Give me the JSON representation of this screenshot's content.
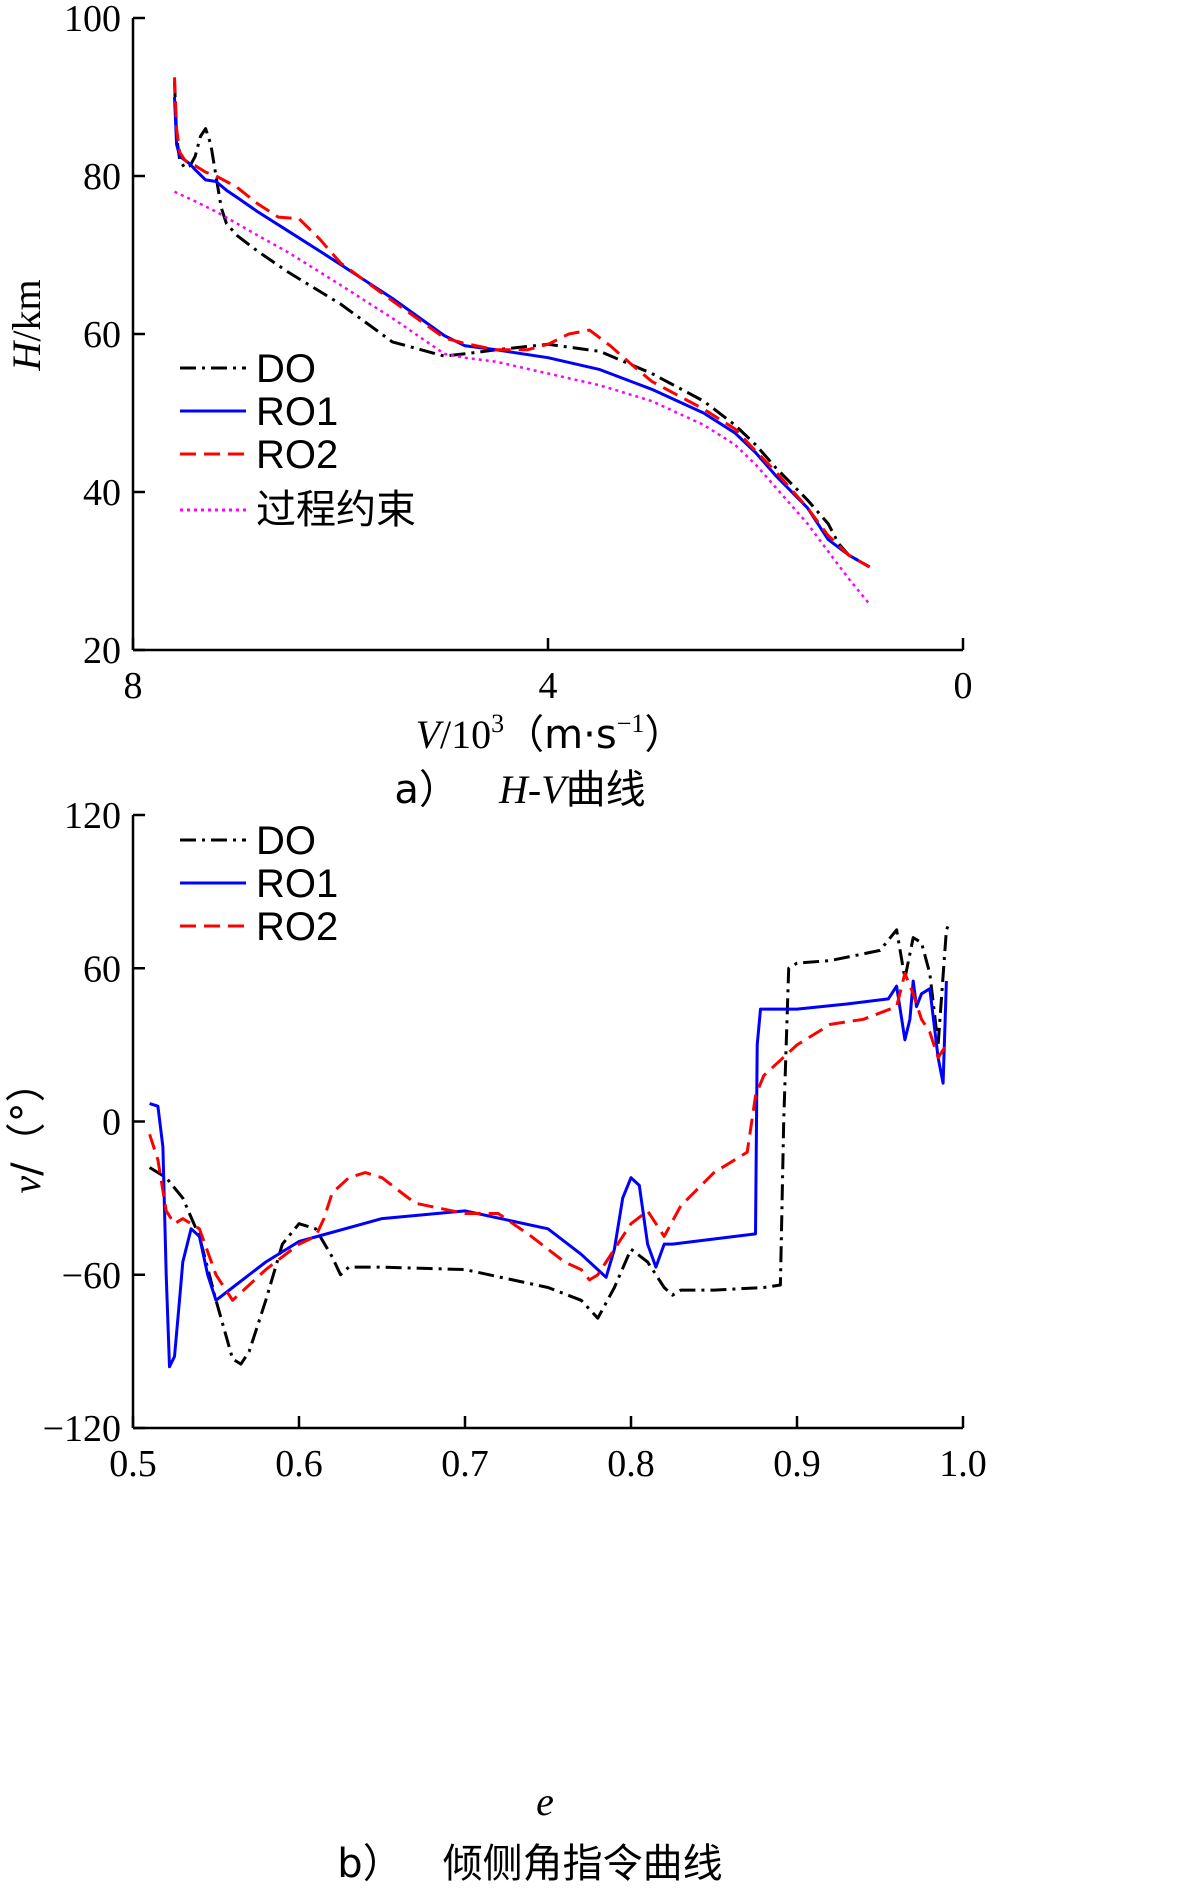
{
  "figure": {
    "caption_a_prefix": "a）",
    "caption_a_title_italic": "H-V",
    "caption_a_title_suffix": "曲线",
    "caption_b_prefix": "b）",
    "caption_b_title": "倾侧角指令曲线"
  },
  "colors": {
    "DO": "#000000",
    "RO1": "#0000ff",
    "RO2": "#ff0000",
    "constraint": "#ff00ff"
  },
  "chart_data": [
    {
      "type": "line",
      "ylabel_italic": "H",
      "ylabel_unit": "/km",
      "xlabel_italic": "V",
      "xlabel_unit": "/10",
      "xlabel_exp": "3",
      "xlabel_units": "（m·s",
      "xlabel_units_exp": "−1",
      "xlabel_units_close": "）",
      "xlim": [
        8,
        0
      ],
      "ylim": [
        20,
        100
      ],
      "xticks": [
        "8",
        "4",
        "0"
      ],
      "xtick_values": [
        8,
        4,
        0
      ],
      "yticks": [
        "20",
        "40",
        "60",
        "80",
        "100"
      ],
      "ytick_values": [
        20,
        40,
        60,
        80,
        100
      ],
      "legend": [
        "DO",
        "RO1",
        "RO2",
        "过程约束"
      ],
      "legend_position": "middle-left",
      "series": [
        {
          "name": "DO",
          "style": "dashdot",
          "color": "#000000",
          "x": [
            7.6,
            7.58,
            7.55,
            7.5,
            7.45,
            7.4,
            7.35,
            7.3,
            7.25,
            7.2,
            7.15,
            7.1,
            7.0,
            6.8,
            6.5,
            6.0,
            5.5,
            5.0,
            4.8,
            4.5,
            4.0,
            3.5,
            3.0,
            2.5,
            2.2,
            2.0,
            1.8,
            1.5,
            1.3,
            1.2,
            1.1,
            0.9
          ],
          "y": [
            92,
            85,
            82,
            81,
            81.3,
            82.5,
            85,
            86,
            84,
            80,
            76,
            74,
            72.5,
            70.5,
            67.8,
            63.8,
            59,
            57.2,
            57.5,
            58,
            58.7,
            57.8,
            55,
            51.5,
            48.5,
            46,
            43,
            39,
            36,
            33.5,
            32,
            30.5
          ]
        },
        {
          "name": "RO1",
          "style": "solid",
          "color": "#0000ff",
          "x": [
            7.6,
            7.58,
            7.55,
            7.5,
            7.45,
            7.4,
            7.3,
            7.2,
            7.1,
            7.0,
            6.8,
            6.5,
            6.2,
            6.0,
            5.5,
            5.0,
            4.8,
            4.5,
            4.0,
            3.5,
            3.0,
            2.5,
            2.2,
            2.0,
            1.8,
            1.5,
            1.3,
            1.1,
            0.9
          ],
          "y": [
            90,
            84,
            82.5,
            82,
            81.5,
            80.8,
            79.5,
            79.3,
            78.2,
            77.3,
            75.5,
            73,
            70.5,
            68.8,
            64.5,
            59.8,
            58.5,
            58,
            57,
            55.5,
            53,
            50,
            47.5,
            45,
            42,
            38,
            34,
            32,
            30.5
          ]
        },
        {
          "name": "RO2",
          "style": "dashed",
          "color": "#ff0000",
          "x": [
            7.6,
            7.58,
            7.55,
            7.5,
            7.45,
            7.4,
            7.3,
            7.2,
            7.0,
            6.8,
            6.6,
            6.4,
            6.2,
            6.0,
            5.5,
            5.0,
            4.8,
            4.5,
            4.2,
            4.0,
            3.8,
            3.6,
            3.4,
            3.2,
            3.0,
            2.5,
            2.2,
            2.0,
            1.8,
            1.5,
            1.3,
            1.1,
            0.9
          ],
          "y": [
            92.5,
            86,
            83,
            82,
            81.5,
            81.3,
            80.5,
            80,
            78.6,
            76.5,
            74.8,
            74.6,
            72,
            69,
            64.2,
            59.5,
            58.8,
            58,
            58,
            58.7,
            60,
            60.5,
            58.5,
            56.2,
            54,
            50.5,
            48,
            45.2,
            42.5,
            38,
            34.5,
            32,
            30.5
          ]
        },
        {
          "name": "过程约束",
          "style": "dotted",
          "color": "#ff00ff",
          "x": [
            7.6,
            7.4,
            7.2,
            7.0,
            6.8,
            6.5,
            6.0,
            5.5,
            5.0,
            4.8,
            4.5,
            4.0,
            3.5,
            3.0,
            2.5,
            2.2,
            2.0,
            1.8,
            1.5,
            1.3,
            1.1,
            0.9
          ],
          "y": [
            78,
            76.8,
            75.5,
            74,
            72.5,
            70.3,
            66.2,
            62,
            57.5,
            57,
            56.5,
            55,
            53.5,
            51.5,
            48.5,
            46,
            43.5,
            40.5,
            36,
            32.5,
            29,
            25.8
          ]
        }
      ]
    },
    {
      "type": "line",
      "ylabel_italic": "ν",
      "ylabel_unit": "/（°）",
      "xlabel_italic": "e",
      "xlim": [
        0.5,
        1.0
      ],
      "ylim": [
        -120,
        120
      ],
      "xticks": [
        "0.5",
        "0.6",
        "0.7",
        "0.8",
        "0.9",
        "1.0"
      ],
      "xtick_values": [
        0.5,
        0.6,
        0.7,
        0.8,
        0.9,
        1.0
      ],
      "yticks": [
        "−120",
        "−60",
        "0",
        "60",
        "120"
      ],
      "ytick_values": [
        -120,
        -60,
        0,
        60,
        120
      ],
      "legend": [
        "DO",
        "RO1",
        "RO2"
      ],
      "legend_position": "top-left",
      "series": [
        {
          "name": "DO",
          "style": "dashdot",
          "color": "#000000",
          "x": [
            0.51,
            0.52,
            0.53,
            0.54,
            0.55,
            0.56,
            0.565,
            0.57,
            0.58,
            0.59,
            0.6,
            0.61,
            0.62,
            0.625,
            0.63,
            0.65,
            0.7,
            0.75,
            0.77,
            0.78,
            0.79,
            0.8,
            0.81,
            0.82,
            0.825,
            0.83,
            0.85,
            0.88,
            0.89,
            0.892,
            0.895,
            0.9,
            0.92,
            0.95,
            0.96,
            0.965,
            0.97,
            0.975,
            0.98,
            0.985,
            0.99,
            0.992
          ],
          "y": [
            -18,
            -22,
            -30,
            -45,
            -70,
            -93,
            -95,
            -90,
            -70,
            -48,
            -40,
            -42,
            -53,
            -60,
            -57,
            -57,
            -58,
            -65,
            -70,
            -77,
            -65,
            -50,
            -55,
            -65,
            -68,
            -66,
            -66,
            -65,
            -64,
            0,
            60,
            62,
            63,
            67,
            75,
            56,
            72,
            70,
            58,
            30,
            75,
            78
          ]
        },
        {
          "name": "RO1",
          "style": "solid",
          "color": "#0000ff",
          "x": [
            0.51,
            0.515,
            0.518,
            0.52,
            0.522,
            0.525,
            0.528,
            0.53,
            0.535,
            0.54,
            0.545,
            0.55,
            0.56,
            0.58,
            0.6,
            0.65,
            0.7,
            0.75,
            0.77,
            0.78,
            0.785,
            0.79,
            0.795,
            0.8,
            0.805,
            0.81,
            0.815,
            0.82,
            0.825,
            0.85,
            0.875,
            0.876,
            0.878,
            0.9,
            0.93,
            0.955,
            0.96,
            0.965,
            0.968,
            0.97,
            0.972,
            0.975,
            0.98,
            0.985,
            0.988,
            0.99
          ],
          "y": [
            7,
            6,
            -10,
            -60,
            -96,
            -92,
            -70,
            -55,
            -42,
            -45,
            -60,
            -70,
            -65,
            -55,
            -47,
            -38,
            -35,
            -42,
            -52,
            -58,
            -61,
            -50,
            -30,
            -22,
            -25,
            -48,
            -57,
            -48,
            -48,
            -46,
            -44,
            30,
            44,
            44,
            46,
            48,
            53,
            32,
            40,
            55,
            45,
            50,
            52,
            25,
            15,
            55
          ]
        },
        {
          "name": "RO2",
          "style": "dashed",
          "color": "#ff0000",
          "x": [
            0.51,
            0.515,
            0.52,
            0.525,
            0.53,
            0.54,
            0.55,
            0.56,
            0.58,
            0.6,
            0.61,
            0.615,
            0.62,
            0.63,
            0.64,
            0.65,
            0.66,
            0.67,
            0.7,
            0.72,
            0.74,
            0.76,
            0.77,
            0.775,
            0.78,
            0.785,
            0.79,
            0.8,
            0.81,
            0.82,
            0.83,
            0.85,
            0.87,
            0.875,
            0.88,
            0.9,
            0.92,
            0.94,
            0.96,
            0.965,
            0.97,
            0.975,
            0.98,
            0.985,
            0.99
          ],
          "y": [
            -5,
            -15,
            -35,
            -40,
            -38,
            -42,
            -60,
            -70,
            -58,
            -48,
            -45,
            -38,
            -28,
            -22,
            -20,
            -22,
            -27,
            -32,
            -36,
            -36,
            -45,
            -55,
            -58,
            -62,
            -60,
            -55,
            -50,
            -40,
            -35,
            -45,
            -33,
            -20,
            -12,
            10,
            18,
            30,
            38,
            40,
            45,
            58,
            50,
            40,
            35,
            25,
            30
          ]
        }
      ]
    }
  ]
}
